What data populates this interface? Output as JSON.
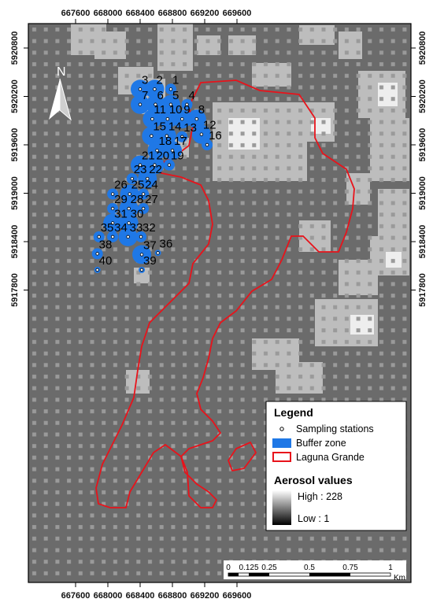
{
  "map": {
    "x_ticks": [
      "667600",
      "668000",
      "668400",
      "668800",
      "669200",
      "669600"
    ],
    "y_ticks": [
      "5920800",
      "5920200",
      "5919600",
      "5919000",
      "5918400",
      "5917800"
    ],
    "north_label": "N",
    "colors": {
      "background": "#6b6b6b",
      "buffer": "#1f78e6",
      "boundary": "#e8131b",
      "light_patch": "#bdbdbd",
      "white_patch": "#eeeeee"
    },
    "stations": [
      {
        "label": "1",
        "e": 668780,
        "n": 5920290,
        "buffer": "small"
      },
      {
        "label": "2",
        "e": 668580,
        "n": 5920290,
        "buffer": "large"
      },
      {
        "label": "3",
        "e": 668400,
        "n": 5920290,
        "buffer": "large"
      },
      {
        "label": "4",
        "e": 668980,
        "n": 5920100,
        "buffer": "small"
      },
      {
        "label": "5",
        "e": 668780,
        "n": 5920100,
        "buffer": "large"
      },
      {
        "label": "6",
        "e": 668590,
        "n": 5920100,
        "buffer": "large"
      },
      {
        "label": "7",
        "e": 668400,
        "n": 5920100,
        "buffer": "large"
      },
      {
        "label": "8",
        "e": 669100,
        "n": 5919920,
        "buffer": "large"
      },
      {
        "label": "9",
        "e": 668920,
        "n": 5919920,
        "buffer": "large"
      },
      {
        "label": "10",
        "e": 668740,
        "n": 5919920,
        "buffer": "large"
      },
      {
        "label": "11",
        "e": 668550,
        "n": 5919920,
        "buffer": "large"
      },
      {
        "label": "12",
        "e": 669160,
        "n": 5919730,
        "buffer": "large"
      },
      {
        "label": "13",
        "e": 668920,
        "n": 5919700,
        "buffer": "small"
      },
      {
        "label": "14",
        "e": 668730,
        "n": 5919710,
        "buffer": "large"
      },
      {
        "label": "15",
        "e": 668540,
        "n": 5919710,
        "buffer": "large"
      },
      {
        "label": "16",
        "e": 669230,
        "n": 5919600,
        "buffer": "small"
      },
      {
        "label": "17",
        "e": 668800,
        "n": 5919530,
        "buffer": "large"
      },
      {
        "label": "18",
        "e": 668610,
        "n": 5919530,
        "buffer": "large"
      },
      {
        "label": "19",
        "e": 668760,
        "n": 5919350,
        "buffer": "small"
      },
      {
        "label": "20",
        "e": 668580,
        "n": 5919350,
        "buffer": "large"
      },
      {
        "label": "21",
        "e": 668400,
        "n": 5919350,
        "buffer": "large"
      },
      {
        "label": "22",
        "e": 668490,
        "n": 5919180,
        "buffer": "large"
      },
      {
        "label": "23",
        "e": 668300,
        "n": 5919180,
        "buffer": "small"
      },
      {
        "label": "24",
        "e": 668440,
        "n": 5918990,
        "buffer": "small"
      },
      {
        "label": "25",
        "e": 668270,
        "n": 5918990,
        "buffer": "large"
      },
      {
        "label": "26",
        "e": 668060,
        "n": 5918990,
        "buffer": "small"
      },
      {
        "label": "27",
        "e": 668440,
        "n": 5918810,
        "buffer": "small"
      },
      {
        "label": "28",
        "e": 668260,
        "n": 5918810,
        "buffer": "large"
      },
      {
        "label": "29",
        "e": 668060,
        "n": 5918810,
        "buffer": "small"
      },
      {
        "label": "30",
        "e": 668260,
        "n": 5918630,
        "buffer": "large"
      },
      {
        "label": "31",
        "e": 668060,
        "n": 5918630,
        "buffer": "large"
      },
      {
        "label": "32",
        "e": 668410,
        "n": 5918460,
        "buffer": "small"
      },
      {
        "label": "33",
        "e": 668250,
        "n": 5918460,
        "buffer": "large"
      },
      {
        "label": "34",
        "e": 668060,
        "n": 5918460,
        "buffer": "small"
      },
      {
        "label": "35",
        "e": 667890,
        "n": 5918460,
        "buffer": "small"
      },
      {
        "label": "36",
        "e": 668620,
        "n": 5918260,
        "buffer": "tiny"
      },
      {
        "label": "37",
        "e": 668420,
        "n": 5918240,
        "buffer": "large"
      },
      {
        "label": "38",
        "e": 667870,
        "n": 5918250,
        "buffer": "small"
      },
      {
        "label": "39",
        "e": 668420,
        "n": 5918050,
        "buffer": "tiny"
      },
      {
        "label": "40",
        "e": 667870,
        "n": 5918050,
        "buffer": "tiny"
      }
    ]
  },
  "legend": {
    "title": "Legend",
    "sampling_stations": "Sampling stations",
    "buffer_zone": "Buffer zone",
    "laguna_grande": "Laguna Grande",
    "aerosol_title": "Aerosol values",
    "high_label": "High : 228",
    "low_label": "Low : 1"
  },
  "scale_bar": {
    "labels": [
      "0",
      "0.125",
      "0.25",
      "0.5",
      "0.75",
      "1"
    ],
    "unit": "Km"
  }
}
